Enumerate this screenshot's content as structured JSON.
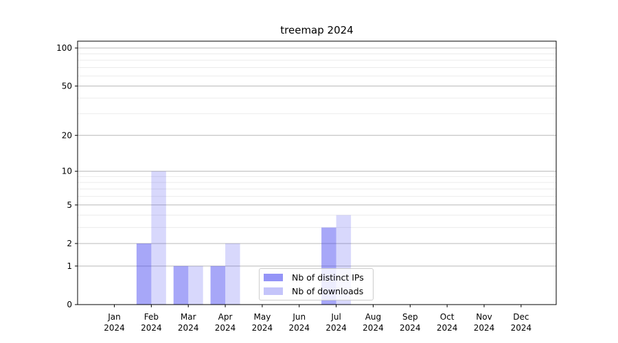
{
  "chart_data": {
    "type": "bar",
    "title": "treemap 2024",
    "x_axis": {
      "categories": [
        "Jan",
        "Feb",
        "Mar",
        "Apr",
        "May",
        "Jun",
        "Jul",
        "Aug",
        "Sep",
        "Oct",
        "Nov",
        "Dec"
      ],
      "year": "2024"
    },
    "y_axis": {
      "scale": "log1p",
      "tick_values": [
        0,
        1,
        2,
        5,
        10,
        20,
        50,
        100
      ],
      "minor_gridlines": [
        3,
        4,
        6,
        7,
        8,
        9,
        30,
        40,
        60,
        70,
        80,
        90
      ],
      "ylim": [
        0,
        113
      ]
    },
    "series": [
      {
        "name": "Nb of distinct IPs",
        "color": "#3c3cf0",
        "fill_opacity": 0.45,
        "values": [
          0,
          2,
          1,
          1,
          0,
          0,
          3,
          0,
          0,
          0,
          0,
          0
        ]
      },
      {
        "name": "Nb of downloads",
        "color": "#3c3cf0",
        "fill_opacity": 0.2,
        "values": [
          0,
          10,
          1,
          2,
          0,
          0,
          4,
          0,
          0,
          0,
          0,
          0
        ]
      }
    ],
    "legend": {
      "position": "lower-center"
    },
    "grid": {
      "major_color": "#b8b8b8",
      "minor_color": "#ebebeb"
    },
    "spine_color": "#000000",
    "background_color": "#ffffff"
  }
}
